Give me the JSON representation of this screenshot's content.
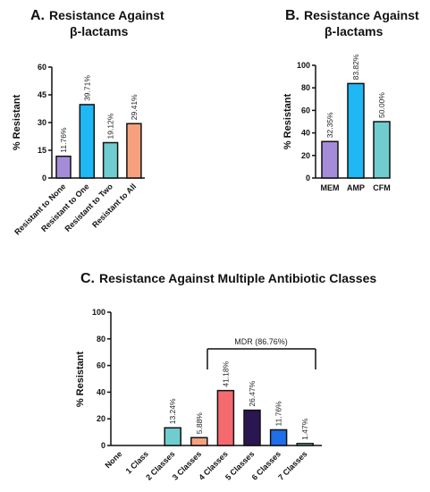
{
  "colors": {
    "purple": "#a58cd9",
    "blue": "#1fb8f5",
    "teal": "#6fcdcf",
    "salmon": "#f7a07e",
    "red": "#f56a6e",
    "navy": "#2a1650",
    "royal": "#1e6fe8",
    "light_teal": "#8fe0de"
  },
  "chart_data": [
    {
      "type": "bar",
      "panel_letter": "A.",
      "title_line1": "Resistance Against",
      "title_line2": "β-lactams",
      "ylabel": "% Resistant",
      "ylim": [
        0,
        60
      ],
      "yticks": [
        "0",
        "15",
        "30",
        "45",
        "60"
      ],
      "categories": [
        "Resistant to None",
        "Resistant to One",
        "Resistant to Two",
        "Resistant to All"
      ],
      "values": [
        11.76,
        39.71,
        19.12,
        29.41
      ],
      "data_labels": [
        "11.76%",
        "39.71%",
        "19.12%",
        "29.41%"
      ],
      "bar_colors": [
        "#a58cd9",
        "#1fb8f5",
        "#6fcdcf",
        "#f7a07e"
      ]
    },
    {
      "type": "bar",
      "panel_letter": "B.",
      "title_line1": "Resistance Against",
      "title_line2": "β-lactams",
      "ylabel": "% Resistant",
      "ylim": [
        0,
        100
      ],
      "yticks": [
        "0",
        "20",
        "40",
        "60",
        "80",
        "100"
      ],
      "categories": [
        "MEM",
        "AMP",
        "CFM"
      ],
      "values": [
        32.35,
        83.82,
        50.0
      ],
      "data_labels": [
        "32.35%",
        "83.82%",
        "50.00%"
      ],
      "bar_colors": [
        "#a58cd9",
        "#1fb8f5",
        "#6fcdcf"
      ]
    },
    {
      "type": "bar",
      "panel_letter": "C.",
      "title_line1": "Resistance Against Multiple Antibiotic Classes",
      "ylabel": "% Resistant",
      "ylim": [
        0,
        100
      ],
      "yticks": [
        "0",
        "20",
        "40",
        "60",
        "80",
        "100"
      ],
      "categories": [
        "None",
        "1 Class",
        "2 Classes",
        "3 Classes",
        "4 Classes",
        "5 Classes",
        "6 Classes",
        "7 Classes"
      ],
      "values": [
        0,
        0,
        13.24,
        5.88,
        41.18,
        26.47,
        11.76,
        1.47
      ],
      "data_labels": [
        "",
        "",
        "13.24%",
        "5.88%",
        "41.18%",
        "26.47%",
        "11.76%",
        "1.47%"
      ],
      "bar_colors": [
        "#ffffff",
        "#ffffff",
        "#6fcdcf",
        "#f7a07e",
        "#f56a6e",
        "#2a1650",
        "#1e6fe8",
        "#8fe0de"
      ],
      "annotation": "MDR  (86.76%)"
    }
  ]
}
